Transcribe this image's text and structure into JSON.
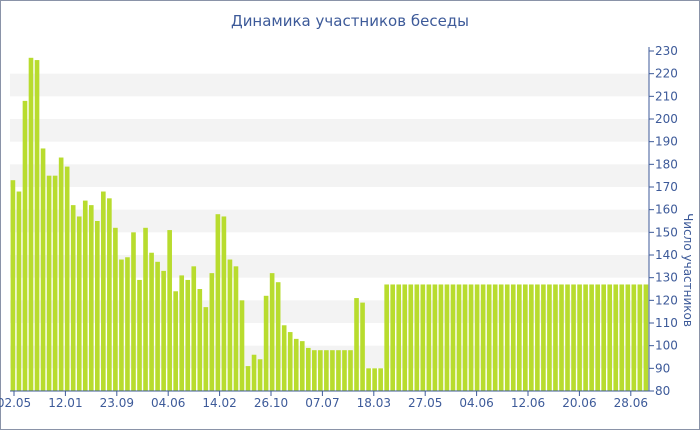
{
  "chart_data": {
    "type": "bar",
    "title": "Динамика участников беседы",
    "ylabel": "Число участников",
    "xlabel": "",
    "ylim": [
      80,
      230
    ],
    "yticks": [
      80,
      90,
      100,
      110,
      120,
      130,
      140,
      150,
      160,
      170,
      180,
      190,
      200,
      210,
      220,
      230
    ],
    "xtick_labels": [
      "02.05",
      "12.01",
      "23.09",
      "04.06",
      "14.02",
      "26.10",
      "07.07",
      "18.03",
      "27.05",
      "04.06",
      "12.06",
      "20.06",
      "28.06"
    ],
    "grid": "horizontal bands",
    "bar_color": "#b8dc2e",
    "values": [
      173,
      168,
      208,
      227,
      226,
      187,
      175,
      175,
      183,
      179,
      162,
      157,
      164,
      162,
      155,
      168,
      165,
      152,
      138,
      139,
      150,
      129,
      152,
      141,
      137,
      133,
      151,
      124,
      131,
      129,
      135,
      125,
      117,
      132,
      158,
      157,
      138,
      135,
      120,
      91,
      96,
      94,
      122,
      132,
      128,
      109,
      106,
      103,
      102,
      99,
      98,
      98,
      98,
      98,
      98,
      98,
      98,
      121,
      119,
      90,
      90,
      90,
      127,
      127,
      127,
      127,
      127,
      127,
      127,
      127,
      127,
      127,
      127,
      127,
      127,
      127,
      127,
      127,
      127,
      127,
      127,
      127,
      127,
      127,
      127,
      127,
      127,
      127,
      127,
      127,
      127,
      127,
      127,
      127,
      127,
      127,
      127,
      127,
      127,
      127,
      127,
      127,
      127,
      127,
      127,
      127
    ]
  }
}
